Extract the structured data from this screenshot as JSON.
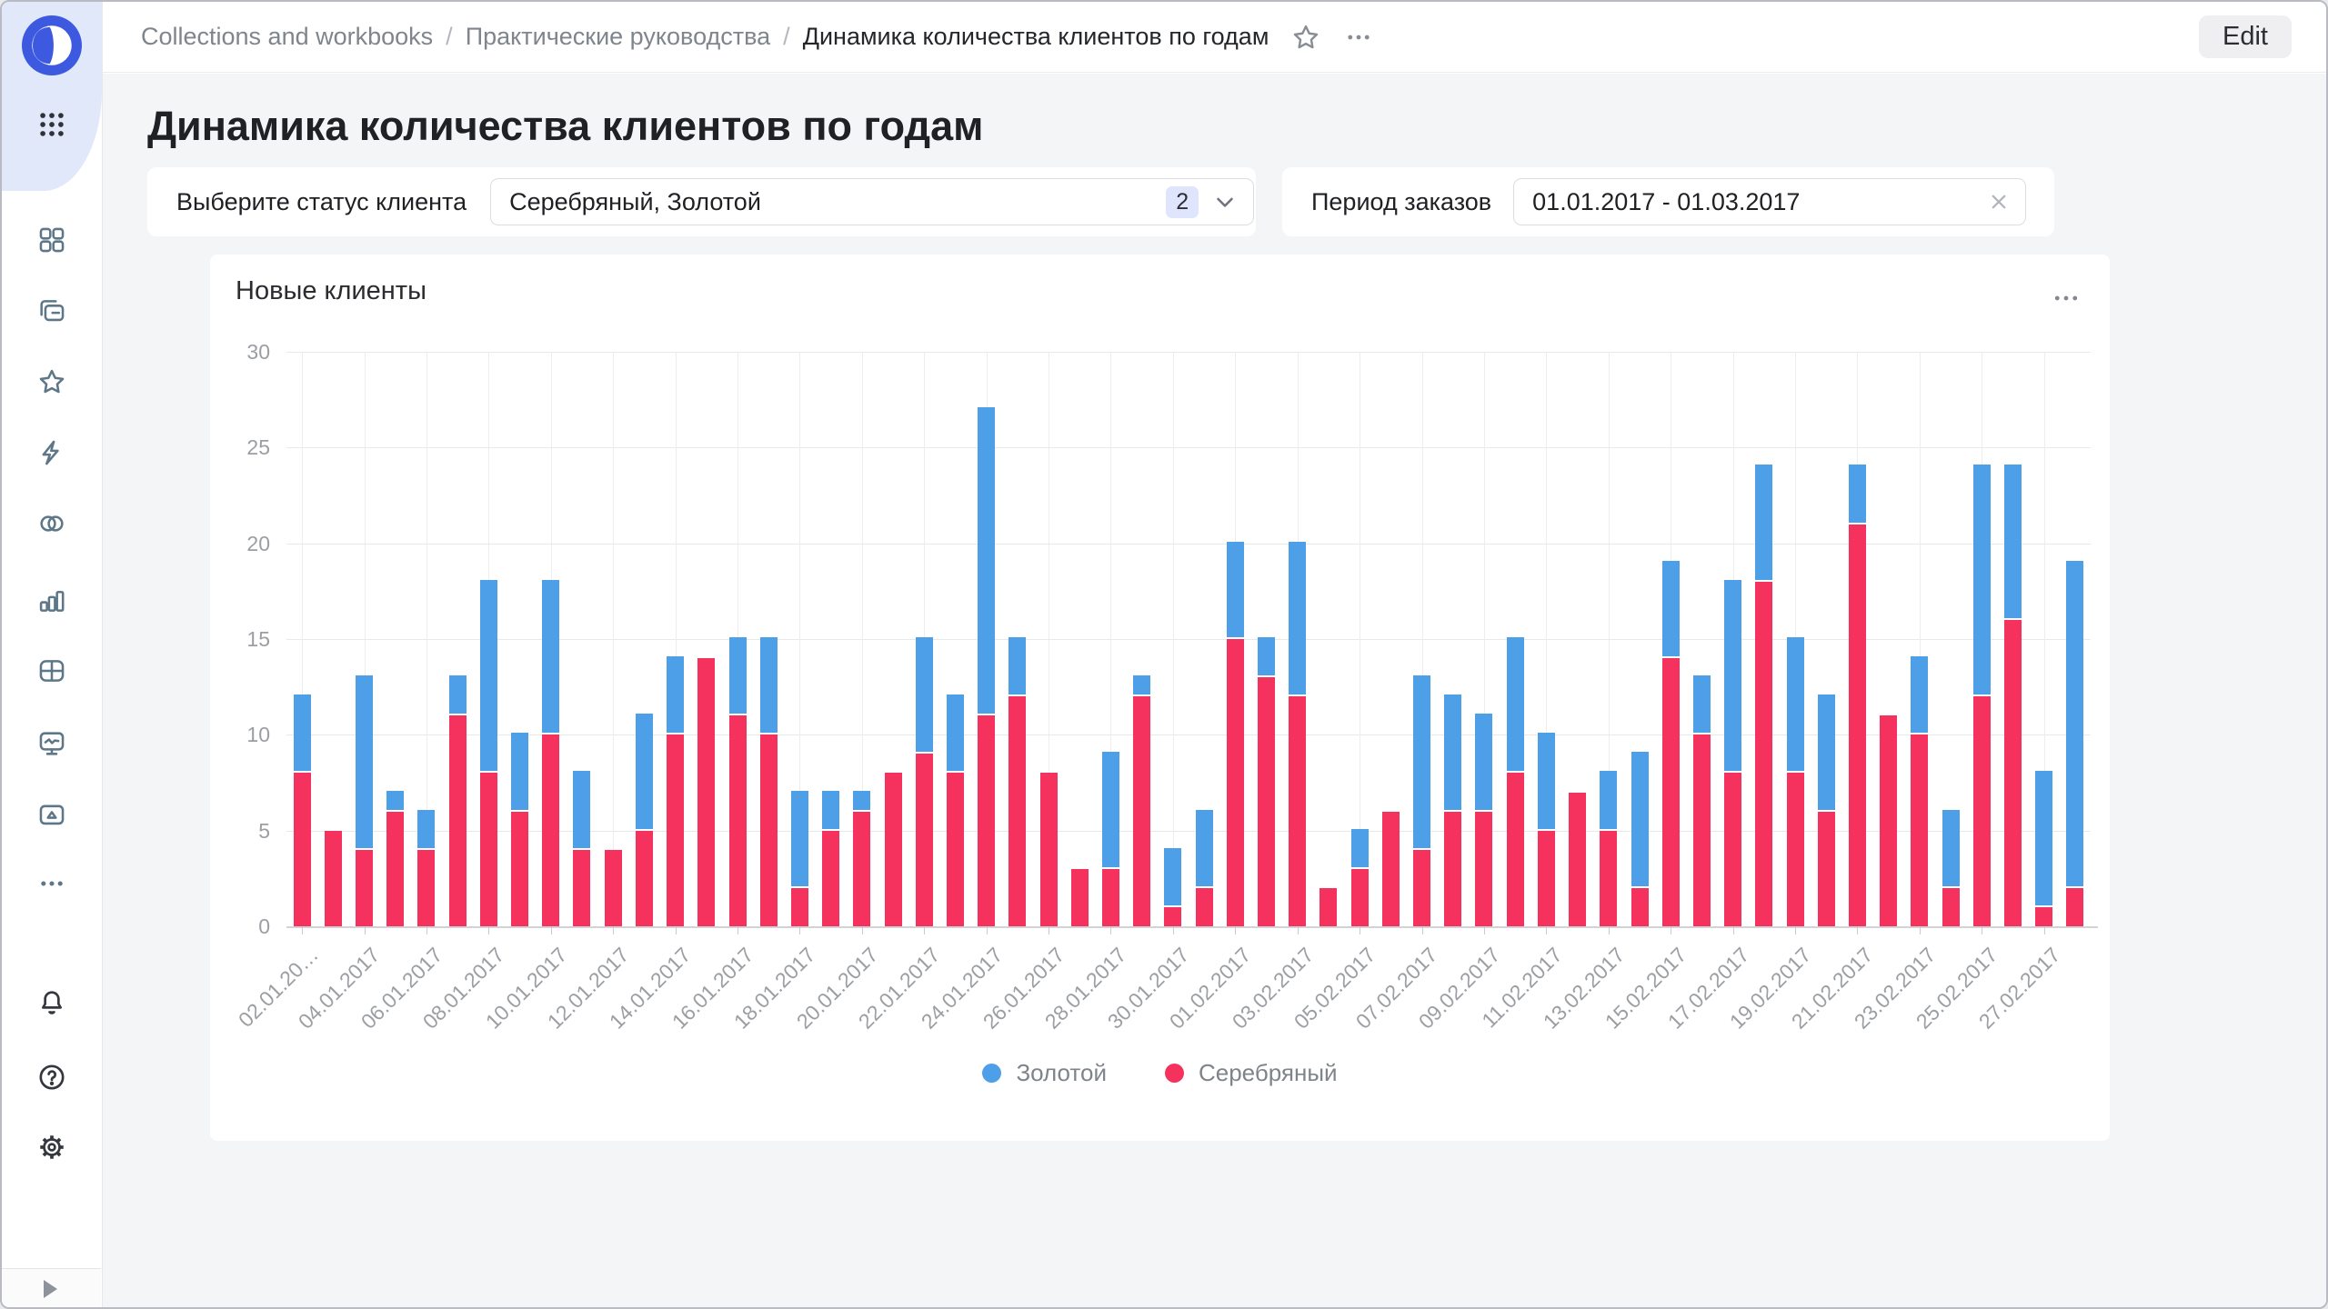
{
  "breadcrumbs": {
    "items": [
      "Collections and workbooks",
      "Практические руководства",
      "Динамика количества клиентов по годам"
    ],
    "separator": "/"
  },
  "topbar": {
    "edit_label": "Edit"
  },
  "page": {
    "title": "Динамика количества клиентов по годам"
  },
  "filters": {
    "status": {
      "label": "Выберите статус клиента",
      "value": "Серебряный, Золотой",
      "count_badge": "2"
    },
    "period": {
      "label": "Период заказов",
      "value": "01.01.2017 - 01.03.2017"
    }
  },
  "chart_card": {
    "title": "Новые клиенты"
  },
  "legend": [
    {
      "label": "Золотой",
      "color": "#4D9FE8"
    },
    {
      "label": "Серебряный",
      "color": "#F5315D"
    }
  ],
  "sidebar": {
    "icons": [
      "datalens-logo",
      "apps-grid",
      "dashboards",
      "workbooks",
      "favorites",
      "editor",
      "connections",
      "charts",
      "tables",
      "monitoring",
      "storage",
      "more",
      "notifications",
      "help",
      "settings",
      "expand-panel"
    ]
  },
  "chart_data": {
    "type": "bar",
    "stacked": true,
    "title": "Новые клиенты",
    "categories": [
      "02.01.2017",
      "03.01.2017",
      "04.01.2017",
      "05.01.2017",
      "06.01.2017",
      "07.01.2017",
      "08.01.2017",
      "09.01.2017",
      "10.01.2017",
      "11.01.2017",
      "12.01.2017",
      "13.01.2017",
      "14.01.2017",
      "15.01.2017",
      "16.01.2017",
      "17.01.2017",
      "18.01.2017",
      "19.01.2017",
      "20.01.2017",
      "21.01.2017",
      "22.01.2017",
      "23.01.2017",
      "24.01.2017",
      "25.01.2017",
      "26.01.2017",
      "27.01.2017",
      "28.01.2017",
      "29.01.2017",
      "30.01.2017",
      "31.01.2017",
      "01.02.2017",
      "02.02.2017",
      "03.02.2017",
      "04.02.2017",
      "05.02.2017",
      "06.02.2017",
      "07.02.2017",
      "08.02.2017",
      "09.02.2017",
      "10.02.2017",
      "11.02.2017",
      "12.02.2017",
      "13.02.2017",
      "14.02.2017",
      "15.02.2017",
      "16.02.2017",
      "17.02.2017",
      "18.02.2017",
      "19.02.2017",
      "20.02.2017",
      "21.02.2017",
      "22.02.2017",
      "23.02.2017",
      "24.02.2017",
      "25.02.2017",
      "26.02.2017",
      "27.02.2017",
      "28.02.2017"
    ],
    "series": [
      {
        "name": "Золотой",
        "color": "#4D9FE8",
        "values": [
          4,
          0,
          9,
          1,
          2,
          2,
          10,
          4,
          8,
          4,
          0,
          6,
          4,
          0,
          4,
          5,
          5,
          2,
          1,
          0,
          6,
          4,
          16,
          3,
          0,
          0,
          6,
          1,
          3,
          4,
          5,
          2,
          8,
          0,
          2,
          0,
          9,
          6,
          5,
          7,
          5,
          0,
          3,
          7,
          5,
          3,
          10,
          6,
          7,
          6,
          3,
          0,
          4,
          4,
          12,
          8,
          7,
          17
        ]
      },
      {
        "name": "Серебряный",
        "color": "#F5315D",
        "values": [
          8,
          5,
          4,
          6,
          4,
          11,
          8,
          6,
          10,
          4,
          4,
          5,
          10,
          14,
          11,
          10,
          2,
          5,
          6,
          8,
          9,
          8,
          11,
          12,
          8,
          3,
          3,
          12,
          1,
          2,
          15,
          13,
          12,
          2,
          3,
          6,
          4,
          6,
          6,
          8,
          5,
          7,
          5,
          2,
          14,
          10,
          8,
          18,
          8,
          6,
          21,
          11,
          10,
          2,
          12,
          16,
          1,
          2
        ]
      }
    ],
    "stack_order_bottom_to_top": [
      "Серебряный",
      "Золотой"
    ],
    "ylim": [
      0,
      30
    ],
    "y_ticks": [
      0,
      5,
      10,
      15,
      20,
      25,
      30
    ],
    "x_tick_every": 2,
    "x_first_label_display": "02.01.20…",
    "grid": true,
    "legend_position": "bottom"
  }
}
